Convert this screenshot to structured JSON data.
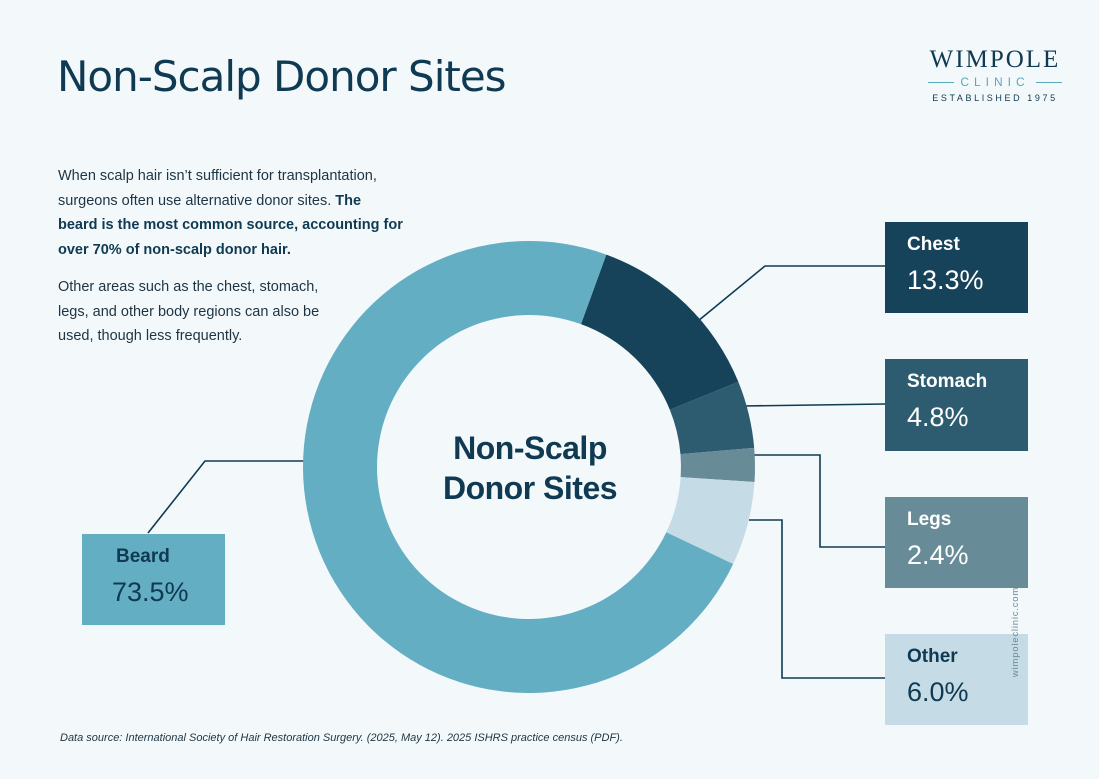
{
  "header": {
    "title": "Non-Scalp Donor Sites"
  },
  "logo": {
    "name": "WIMPOLE",
    "sub": "CLINIC",
    "established": "ESTABLISHED 1975"
  },
  "intro": {
    "line1": "When scalp hair isn’t sufficient for transplantation, surgeons often use alternative donor sites.",
    "bold": "The beard is the most common source, accounting for over 70% of non-scalp donor hair.",
    "line2": "Other areas such as the chest, stomach, legs, and other body regions can also be used, though less frequently."
  },
  "chart_data": {
    "type": "pie",
    "center_label": "Non-Scalp Donor Sites",
    "categories": [
      "Chest",
      "Stomach",
      "Legs",
      "Other",
      "Beard"
    ],
    "values": [
      13.3,
      4.8,
      2.4,
      6.0,
      73.5
    ],
    "value_labels": [
      "13.3%",
      "4.8%",
      "2.4%",
      "6.0%",
      "73.5%"
    ],
    "colors": [
      "#16425a",
      "#2d5c70",
      "#678c98",
      "#c5dce6",
      "#64aec3"
    ],
    "label_text_colors": [
      "#ffffff",
      "#ffffff",
      "#ffffff",
      "#0f3a52",
      "#0f3a52"
    ],
    "start_angle_deg": 20,
    "direction": "clockwise"
  },
  "footer": {
    "source": "Data source: International Society of Hair Restoration Surgery. (2025, May 12). 2025 ISHRS practice census (PDF).",
    "url": "wimpoleclinic.com"
  }
}
